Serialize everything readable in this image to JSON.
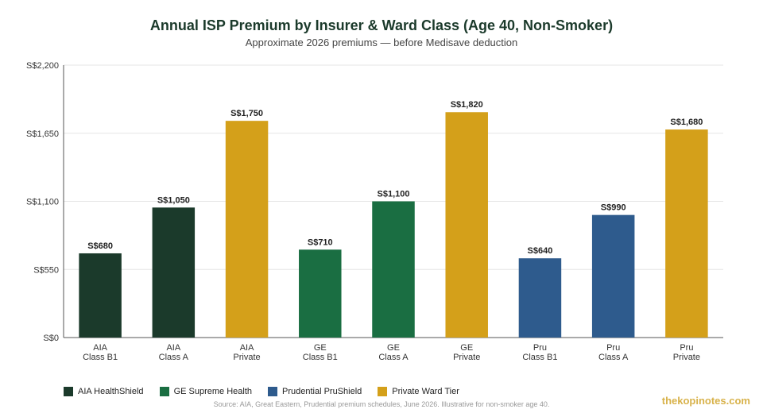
{
  "chart_data": {
    "type": "bar",
    "title": "Annual ISP Premium by Insurer & Ward Class (Age 40, Non-Smoker)",
    "subtitle": "Approximate 2026 premiums — before Medisave deduction",
    "categories": [
      [
        "AIA",
        "Class B1"
      ],
      [
        "AIA",
        "Class A"
      ],
      [
        "AIA",
        "Private"
      ],
      [
        "GE",
        "Class B1"
      ],
      [
        "GE",
        "Class A"
      ],
      [
        "GE",
        "Private"
      ],
      [
        "Pru",
        "Class B1"
      ],
      [
        "Pru",
        "Class A"
      ],
      [
        "Pru",
        "Private"
      ]
    ],
    "values": [
      680,
      1050,
      1750,
      710,
      1100,
      1820,
      640,
      990,
      1680
    ],
    "value_labels": [
      "S$680",
      "S$1,050",
      "S$1,750",
      "S$710",
      "S$1,100",
      "S$1,820",
      "S$640",
      "S$990",
      "S$1,680"
    ],
    "bar_series": [
      0,
      0,
      3,
      1,
      1,
      3,
      2,
      2,
      3
    ],
    "series": [
      {
        "name": "AIA HealthShield",
        "color": "#1b3a2b"
      },
      {
        "name": "GE Supreme Health",
        "color": "#1a6e42"
      },
      {
        "name": "Prudential PruShield",
        "color": "#2e5b8d"
      },
      {
        "name": "Private Ward Tier",
        "color": "#d4a01a"
      }
    ],
    "ylim": [
      0,
      2200
    ],
    "yticks": [
      0,
      550,
      1100,
      1650,
      2200
    ],
    "ytick_labels": [
      "S$0",
      "S$550",
      "S$1,100",
      "S$1,650",
      "S$2,200"
    ],
    "grid": true,
    "legend_position": "bottom-left"
  },
  "footer": {
    "source": "Source: AIA, Great Eastern, Prudential premium schedules, June 2026. Illustrative for non-smoker age 40.",
    "watermark": "thekopinotes.com"
  }
}
